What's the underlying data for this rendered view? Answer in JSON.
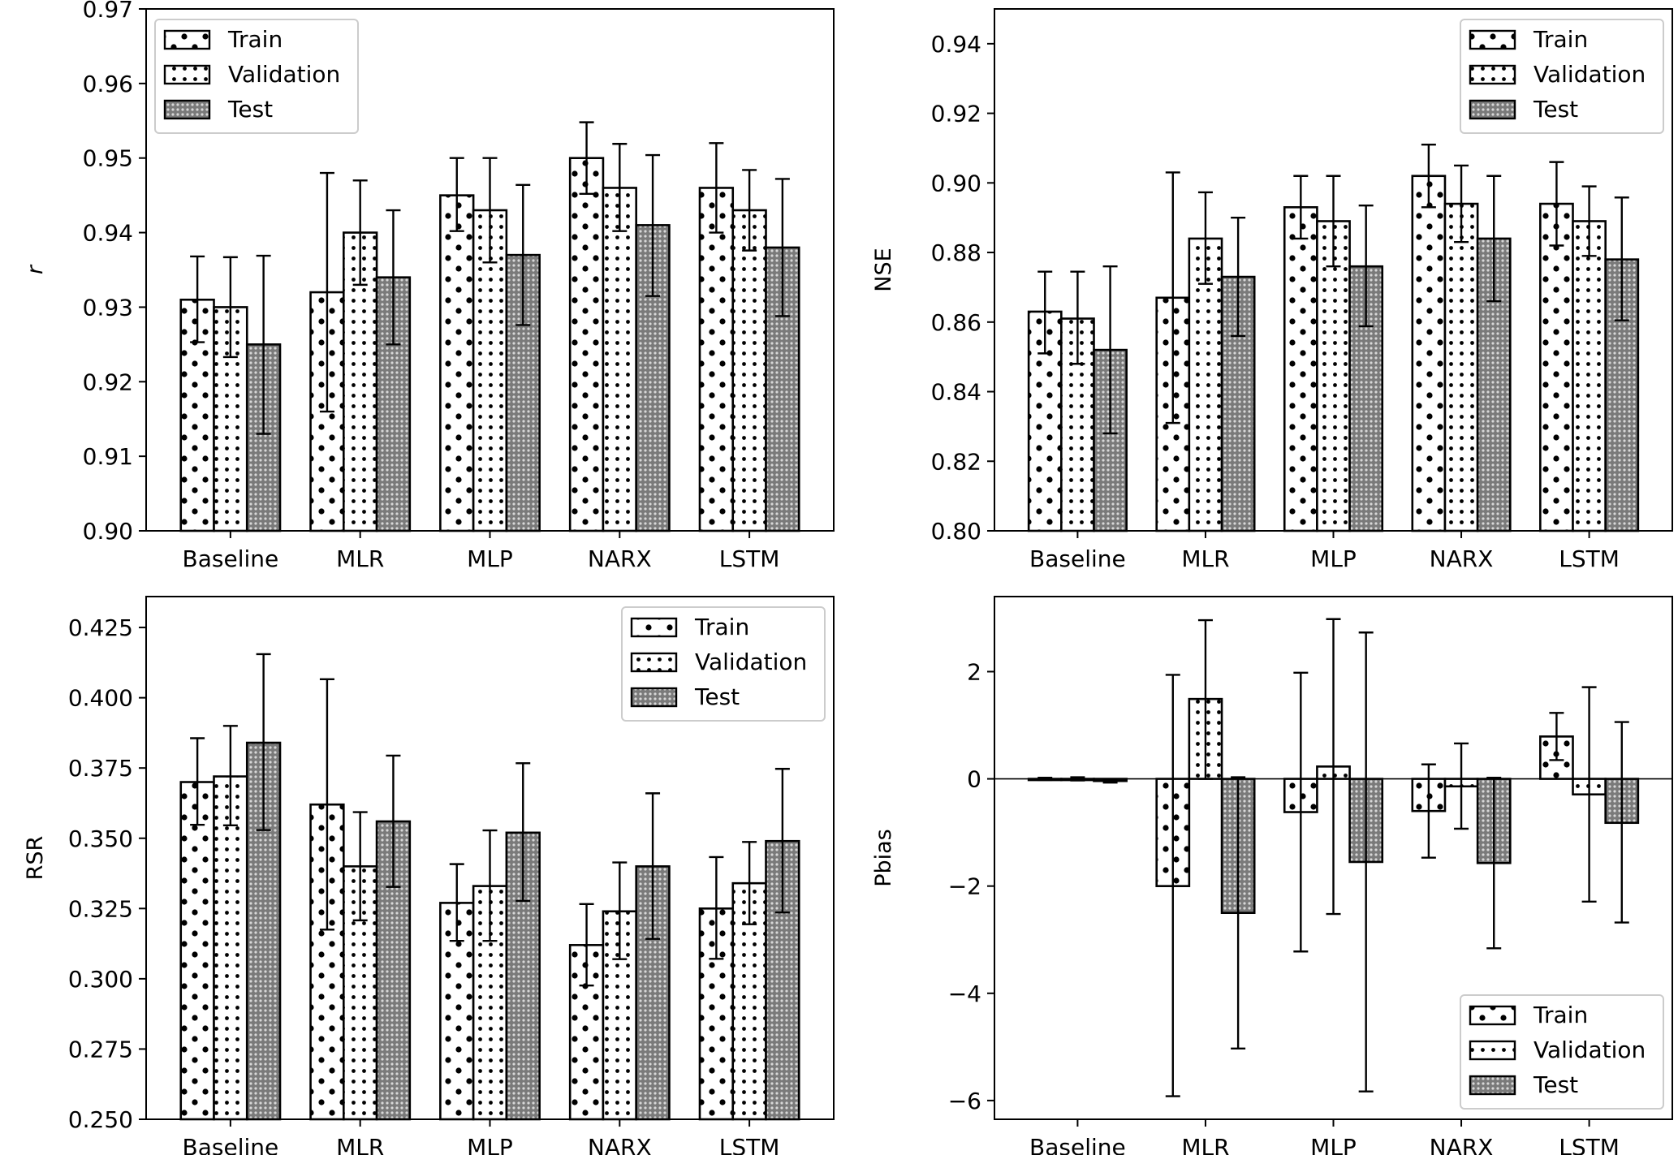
{
  "chart_data": [
    {
      "type": "bar",
      "panel": "top-left",
      "title": "",
      "xlabel": "",
      "ylabel": "r",
      "ylabel_italic": true,
      "ylim": [
        0.9,
        0.97
      ],
      "yticks": [
        0.9,
        0.91,
        0.92,
        0.93,
        0.94,
        0.95,
        0.96,
        0.97
      ],
      "ytick_labels": [
        "0.90",
        "0.91",
        "0.92",
        "0.93",
        "0.94",
        "0.95",
        "0.96",
        "0.97"
      ],
      "categories": [
        "Baseline",
        "MLR",
        "MLP",
        "NARX",
        "LSTM"
      ],
      "legend": "top-left",
      "grid": false,
      "series": [
        {
          "name": "Train",
          "hatch": "sparse-dots",
          "values": [
            0.931,
            0.932,
            0.945,
            0.95,
            0.946
          ],
          "err_low": [
            0.9253,
            0.916,
            0.9402,
            0.9452,
            0.94
          ],
          "err_high": [
            0.9368,
            0.948,
            0.95,
            0.9548,
            0.952
          ]
        },
        {
          "name": "Validation",
          "hatch": "dense-dots",
          "values": [
            0.93,
            0.94,
            0.943,
            0.946,
            0.943
          ],
          "err_low": [
            0.9233,
            0.933,
            0.936,
            0.9402,
            0.9376
          ],
          "err_high": [
            0.9367,
            0.947,
            0.95,
            0.9519,
            0.9484
          ]
        },
        {
          "name": "Test",
          "hatch": "grey-stipple",
          "values": [
            0.925,
            0.934,
            0.937,
            0.941,
            0.938
          ],
          "err_low": [
            0.913,
            0.925,
            0.9276,
            0.9315,
            0.9288
          ],
          "err_high": [
            0.9369,
            0.943,
            0.9464,
            0.9504,
            0.9472
          ]
        }
      ]
    },
    {
      "type": "bar",
      "panel": "top-right",
      "title": "",
      "xlabel": "",
      "ylabel": "NSE",
      "ylabel_italic": false,
      "ylim": [
        0.8,
        0.95
      ],
      "yticks": [
        0.8,
        0.82,
        0.84,
        0.86,
        0.88,
        0.9,
        0.92,
        0.94
      ],
      "ytick_labels": [
        "0.80",
        "0.82",
        "0.84",
        "0.86",
        "0.88",
        "0.90",
        "0.92",
        "0.94"
      ],
      "categories": [
        "Baseline",
        "MLR",
        "MLP",
        "NARX",
        "LSTM"
      ],
      "legend": "top-right",
      "grid": false,
      "series": [
        {
          "name": "Train",
          "hatch": "sparse-dots",
          "values": [
            0.863,
            0.867,
            0.893,
            0.902,
            0.894
          ],
          "err_low": [
            0.851,
            0.831,
            0.884,
            0.893,
            0.882
          ],
          "err_high": [
            0.8745,
            0.903,
            0.902,
            0.911,
            0.906
          ]
        },
        {
          "name": "Validation",
          "hatch": "dense-dots",
          "values": [
            0.861,
            0.884,
            0.889,
            0.894,
            0.889
          ],
          "err_low": [
            0.848,
            0.871,
            0.876,
            0.883,
            0.879
          ],
          "err_high": [
            0.8745,
            0.8973,
            0.902,
            0.905,
            0.899
          ]
        },
        {
          "name": "Test",
          "hatch": "grey-stipple",
          "values": [
            0.852,
            0.873,
            0.876,
            0.884,
            0.878
          ],
          "err_low": [
            0.828,
            0.856,
            0.8588,
            0.866,
            0.8605
          ],
          "err_high": [
            0.876,
            0.89,
            0.8935,
            0.902,
            0.8958
          ]
        }
      ]
    },
    {
      "type": "bar",
      "panel": "bottom-left",
      "title": "",
      "xlabel": "",
      "ylabel": "RSR",
      "ylabel_italic": false,
      "ylim": [
        0.25,
        0.436
      ],
      "yticks": [
        0.25,
        0.275,
        0.3,
        0.325,
        0.35,
        0.375,
        0.4,
        0.425
      ],
      "ytick_labels": [
        "0.250",
        "0.275",
        "0.300",
        "0.325",
        "0.350",
        "0.375",
        "0.400",
        "0.425"
      ],
      "categories": [
        "Baseline",
        "MLR",
        "MLP",
        "NARX",
        "LSTM"
      ],
      "legend": "top-right",
      "grid": false,
      "series": [
        {
          "name": "Train",
          "hatch": "sparse-dots",
          "values": [
            0.37,
            0.362,
            0.327,
            0.312,
            0.325
          ],
          "err_low": [
            0.3548,
            0.3175,
            0.3135,
            0.2976,
            0.3071
          ],
          "err_high": [
            0.3856,
            0.4066,
            0.3408,
            0.3266,
            0.3433
          ]
        },
        {
          "name": "Validation",
          "hatch": "dense-dots",
          "values": [
            0.372,
            0.34,
            0.333,
            0.324,
            0.334
          ],
          "err_low": [
            0.3546,
            0.3208,
            0.3135,
            0.307,
            0.3194
          ],
          "err_high": [
            0.39,
            0.3593,
            0.3528,
            0.3414,
            0.3487
          ]
        },
        {
          "name": "Test",
          "hatch": "grey-stipple",
          "values": [
            0.384,
            0.356,
            0.352,
            0.34,
            0.349
          ],
          "err_low": [
            0.3529,
            0.3327,
            0.3277,
            0.3142,
            0.3236
          ],
          "err_high": [
            0.4155,
            0.3794,
            0.3767,
            0.366,
            0.3747
          ]
        }
      ]
    },
    {
      "type": "bar",
      "panel": "bottom-right",
      "title": "",
      "xlabel": "",
      "ylabel": "Pbias",
      "ylabel_italic": false,
      "ylim": [
        -6.35,
        3.4
      ],
      "yticks": [
        -6,
        -4,
        -2,
        0,
        2
      ],
      "ytick_labels": [
        "−6",
        "−4",
        "−2",
        "0",
        "2"
      ],
      "zero_line": true,
      "categories": [
        "Baseline",
        "MLR",
        "MLP",
        "NARX",
        "LSTM"
      ],
      "legend": "bottom-right",
      "grid": false,
      "series": [
        {
          "name": "Train",
          "hatch": "sparse-dots",
          "values": [
            0.0,
            -2.0,
            -0.62,
            -0.6,
            0.79
          ],
          "err_low": [
            -0.02,
            -5.92,
            -3.22,
            -1.47,
            0.35
          ],
          "err_high": [
            0.02,
            1.94,
            1.98,
            0.27,
            1.23
          ]
        },
        {
          "name": "Validation",
          "hatch": "dense-dots",
          "values": [
            0.0,
            1.49,
            0.23,
            -0.14,
            -0.29
          ],
          "err_low": [
            -0.03,
            0.0,
            -2.52,
            -0.93,
            -2.29
          ],
          "err_high": [
            0.03,
            2.96,
            2.98,
            0.66,
            1.71
          ]
        },
        {
          "name": "Test",
          "hatch": "grey-stipple",
          "values": [
            -0.04,
            -2.5,
            -1.55,
            -1.57,
            -0.82
          ],
          "err_low": [
            -0.07,
            -5.03,
            -5.83,
            -3.16,
            -2.68
          ],
          "err_high": [
            -0.01,
            0.03,
            2.73,
            0.02,
            1.06
          ]
        }
      ]
    }
  ],
  "colors": {
    "axis": "#000000",
    "bar_edge": "#000000",
    "bar_fill": "#ffffff",
    "test_fill": "#8c8c8c",
    "legend_frame": "#cccccc"
  }
}
